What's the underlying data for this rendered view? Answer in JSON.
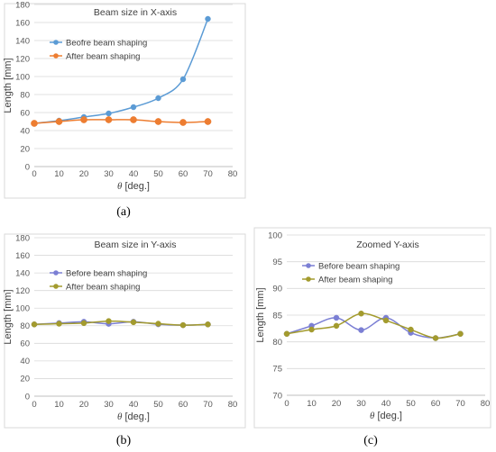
{
  "chart_data": [
    {
      "type": "line",
      "panel_label": "(a)",
      "title": "Beam size in X-axis",
      "xlabel": "[deg.]",
      "xlabel_symbol": "θ",
      "ylabel": "Length [mm]",
      "xlim": [
        0,
        80
      ],
      "ylim": [
        0,
        180
      ],
      "xticks": [
        0,
        10,
        20,
        30,
        40,
        50,
        60,
        70,
        80
      ],
      "yticks": [
        0,
        20,
        40,
        60,
        80,
        100,
        120,
        140,
        160,
        180
      ],
      "grid": "horizontal",
      "legend": "top-left",
      "x": [
        0,
        10,
        20,
        30,
        40,
        50,
        60,
        70
      ],
      "series": [
        {
          "name": "Beofre beam shaping",
          "color": "#5B9BD5",
          "marker": "circle",
          "values": [
            48,
            51,
            55,
            59,
            66,
            76,
            97,
            164
          ]
        },
        {
          "name": "After beam shaping",
          "color": "#ED7D31",
          "marker": "circle",
          "values": [
            48,
            50,
            52,
            52,
            52,
            50,
            49,
            50
          ]
        }
      ]
    },
    {
      "type": "line",
      "panel_label": "(b)",
      "title": "Beam size in Y-axis",
      "xlabel": "[deg.]",
      "xlabel_symbol": "θ",
      "ylabel": "Length [mm]",
      "xlim": [
        0,
        80
      ],
      "ylim": [
        0,
        180
      ],
      "xticks": [
        0,
        10,
        20,
        30,
        40,
        50,
        60,
        70,
        80
      ],
      "yticks": [
        0,
        20,
        40,
        60,
        80,
        100,
        120,
        140,
        160,
        180
      ],
      "grid": "horizontal",
      "legend": "top-left",
      "x": [
        0,
        10,
        20,
        30,
        40,
        50,
        60,
        70
      ],
      "series": [
        {
          "name": "Before beam shaping",
          "color": "#7B7FD4",
          "marker": "circle",
          "values": [
            81.5,
            83,
            84.5,
            82.2,
            84.5,
            81.7,
            80.7,
            81.5
          ]
        },
        {
          "name": "After beam shaping",
          "color": "#A39B2E",
          "marker": "circle",
          "values": [
            81.5,
            82.3,
            83,
            85.3,
            84,
            82.3,
            80.7,
            81.5
          ]
        }
      ]
    },
    {
      "type": "line",
      "panel_label": "(c)",
      "title": "Zoomed Y-axis",
      "xlabel": "[deg.]",
      "xlabel_symbol": "θ",
      "ylabel": "Length [mm]",
      "xlim": [
        0,
        80
      ],
      "ylim": [
        70,
        100
      ],
      "xticks": [
        0,
        10,
        20,
        30,
        40,
        50,
        60,
        70,
        80
      ],
      "yticks": [
        70,
        75,
        80,
        85,
        90,
        95,
        100
      ],
      "grid": "horizontal",
      "legend": "top-left",
      "x": [
        0,
        10,
        20,
        30,
        40,
        50,
        60,
        70
      ],
      "series": [
        {
          "name": "Before beam shaping",
          "color": "#7B7FD4",
          "marker": "circle",
          "values": [
            81.5,
            83,
            84.5,
            82.2,
            84.5,
            81.7,
            80.7,
            81.5
          ]
        },
        {
          "name": "After beam shaping",
          "color": "#A39B2E",
          "marker": "circle",
          "values": [
            81.5,
            82.3,
            83,
            85.3,
            84,
            82.3,
            80.7,
            81.5
          ]
        }
      ]
    }
  ]
}
